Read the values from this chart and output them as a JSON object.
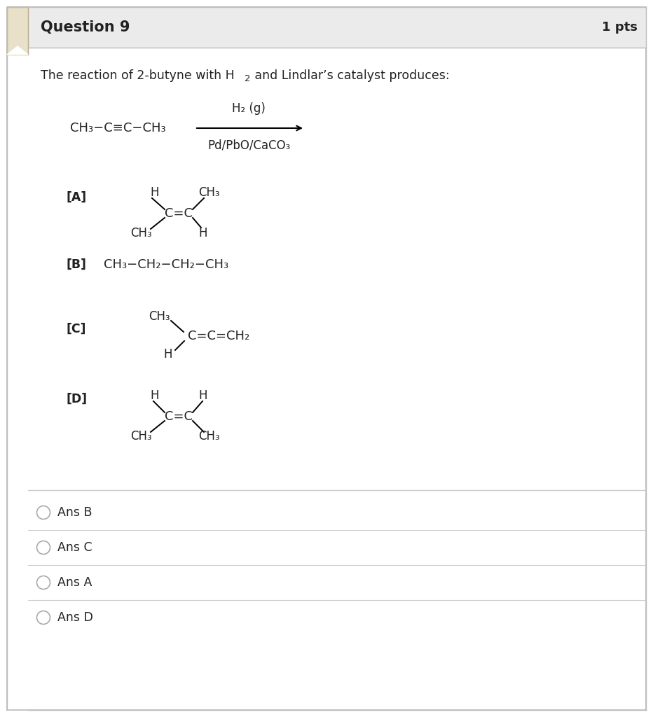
{
  "title": "Question 9",
  "pts": "1 pts",
  "bg_header": "#ebebeb",
  "bg_body": "#ffffff",
  "border_color": "#bbbbbb",
  "text_color": "#222222",
  "divider_color": "#cccccc",
  "arrow_color": "#000000",
  "radio_color": "#aaaaaa",
  "tab_fill": "#e8e0c8",
  "tab_border": "#c0aa70",
  "answers": [
    "Ans B",
    "Ans C",
    "Ans A",
    "Ans D"
  ]
}
